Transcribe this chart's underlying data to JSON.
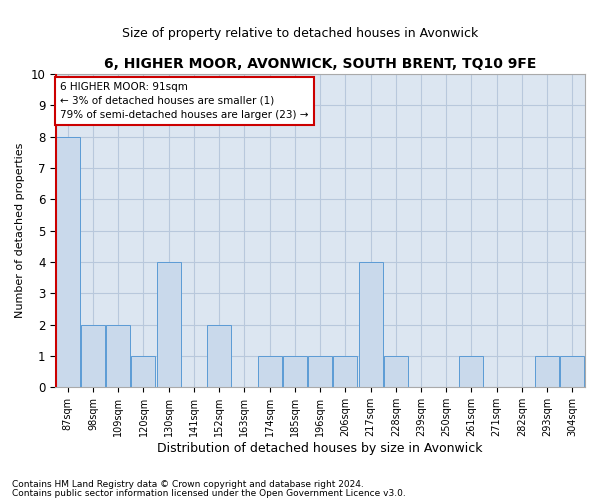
{
  "title": "6, HIGHER MOOR, AVONWICK, SOUTH BRENT, TQ10 9FE",
  "subtitle": "Size of property relative to detached houses in Avonwick",
  "xlabel": "Distribution of detached houses by size in Avonwick",
  "ylabel": "Number of detached properties",
  "footer_line1": "Contains HM Land Registry data © Crown copyright and database right 2024.",
  "footer_line2": "Contains public sector information licensed under the Open Government Licence v3.0.",
  "annotation_line1": "6 HIGHER MOOR: 91sqm",
  "annotation_line2": "← 3% of detached houses are smaller (1)",
  "annotation_line3": "79% of semi-detached houses are larger (23) →",
  "categories": [
    "87sqm",
    "98sqm",
    "109sqm",
    "120sqm",
    "130sqm",
    "141sqm",
    "152sqm",
    "163sqm",
    "174sqm",
    "185sqm",
    "196sqm",
    "206sqm",
    "217sqm",
    "228sqm",
    "239sqm",
    "250sqm",
    "261sqm",
    "271sqm",
    "282sqm",
    "293sqm",
    "304sqm"
  ],
  "values": [
    8,
    2,
    2,
    1,
    4,
    0,
    2,
    0,
    1,
    1,
    1,
    1,
    4,
    1,
    0,
    0,
    1,
    0,
    0,
    1,
    1
  ],
  "bar_color": "#c9d9eb",
  "bar_edge_color": "#5b9bd5",
  "highlight_color": "#cc0000",
  "ylim": [
    0,
    10
  ],
  "yticks": [
    0,
    1,
    2,
    3,
    4,
    5,
    6,
    7,
    8,
    9,
    10
  ],
  "grid_color": "#b8c8dc",
  "bg_color": "#dce6f1",
  "annotation_box_color": "#ffffff",
  "annotation_border_color": "#cc0000",
  "title_fontsize": 10,
  "subtitle_fontsize": 9,
  "ylabel_fontsize": 8,
  "xlabel_fontsize": 9,
  "footer_fontsize": 6.5,
  "tick_fontsize": 8.5
}
